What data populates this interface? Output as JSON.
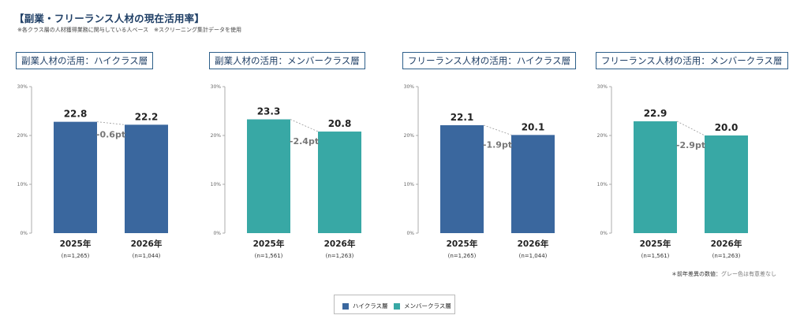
{
  "header": {
    "title": "【副業・フリーランス人材の現在活用率】",
    "note": "※各クラス層の人材獲得業務に関与している人ベース　※スクリーニング集計データを使用"
  },
  "colors": {
    "high_class": "#3a679e",
    "member_class": "#38a8a5"
  },
  "footnote": {
    "bold": "＊前年差異の数値：",
    "gray": "グレー色は有意差なし"
  },
  "legend": [
    {
      "label": "ハイクラス層",
      "color": "#3a679e"
    },
    {
      "label": "メンバークラス層",
      "color": "#38a8a5"
    }
  ],
  "chart_data": [
    {
      "type": "bar",
      "title": "副業人材の活用：ハイクラス層",
      "categories": [
        "2025年",
        "2026年"
      ],
      "sample_sizes": [
        "(n=1,265)",
        "(n=1,044)"
      ],
      "values": [
        22.8,
        22.2
      ],
      "value_labels": [
        "22.8",
        "22.2"
      ],
      "diff_label": "-0.6pt",
      "color": "#3a679e",
      "ylim": [
        0,
        30
      ],
      "yticks": [
        "0%",
        "10%",
        "20%",
        "30%"
      ],
      "grid": false
    },
    {
      "type": "bar",
      "title": "副業人材の活用：メンバークラス層",
      "categories": [
        "2025年",
        "2026年"
      ],
      "sample_sizes": [
        "(n=1,561)",
        "(n=1,263)"
      ],
      "values": [
        23.3,
        20.8
      ],
      "value_labels": [
        "23.3",
        "20.8"
      ],
      "diff_label": "-2.4pt",
      "color": "#38a8a5",
      "ylim": [
        0,
        30
      ],
      "yticks": [
        "0%",
        "10%",
        "20%",
        "30%"
      ],
      "grid": false
    },
    {
      "type": "bar",
      "title": "フリーランス人材の活用：ハイクラス層",
      "categories": [
        "2025年",
        "2026年"
      ],
      "sample_sizes": [
        "(n=1,265)",
        "(n=1,044)"
      ],
      "values": [
        22.1,
        20.1
      ],
      "value_labels": [
        "22.1",
        "20.1"
      ],
      "diff_label": "-1.9pt",
      "color": "#3a679e",
      "ylim": [
        0,
        30
      ],
      "yticks": [
        "0%",
        "10%",
        "20%",
        "30%"
      ],
      "grid": false
    },
    {
      "type": "bar",
      "title": "フリーランス人材の活用：メンバークラス層",
      "categories": [
        "2025年",
        "2026年"
      ],
      "sample_sizes": [
        "(n=1,561)",
        "(n=1,263)"
      ],
      "values": [
        22.9,
        20.0
      ],
      "value_labels": [
        "22.9",
        "20.0"
      ],
      "diff_label": "-2.9pt",
      "color": "#38a8a5",
      "ylim": [
        0,
        30
      ],
      "yticks": [
        "0%",
        "10%",
        "20%",
        "30%"
      ],
      "grid": false
    }
  ]
}
